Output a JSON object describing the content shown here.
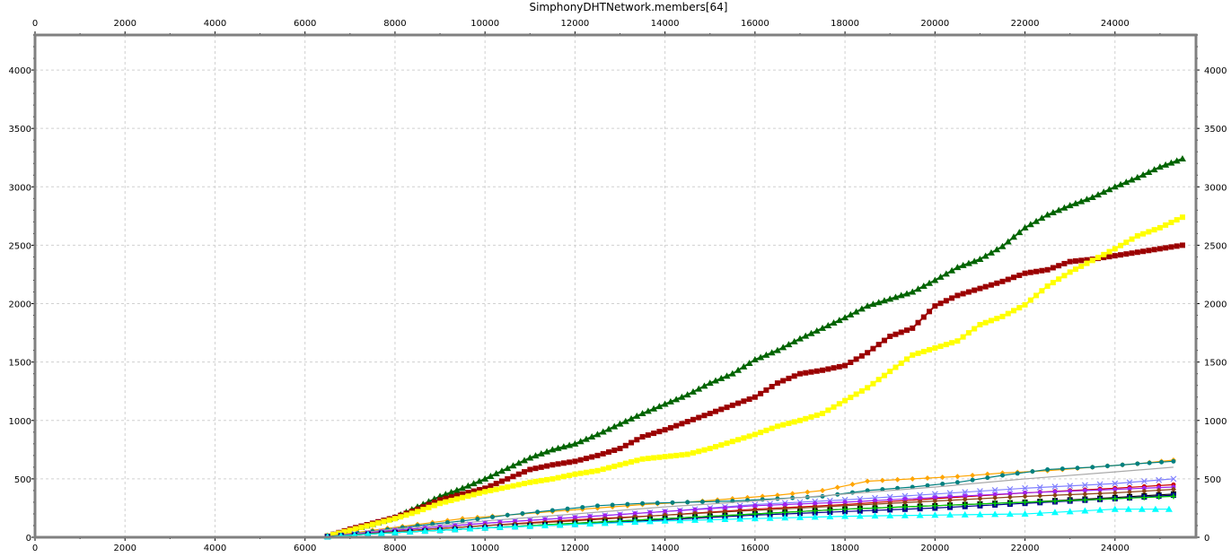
{
  "chart_data": {
    "type": "line",
    "title": "SimphonyDHTNetwork.members[64]",
    "xlim": [
      0,
      25800
    ],
    "ylim": [
      0,
      4300
    ],
    "x_ticks": [
      0,
      2000,
      4000,
      6000,
      8000,
      10000,
      12000,
      14000,
      16000,
      18000,
      20000,
      22000,
      24000
    ],
    "x_tick_labels": [
      "0",
      "2000",
      "4000",
      "6000",
      "8000",
      "10000",
      "12000",
      "14000",
      "16000",
      "18000",
      "20000",
      "22000",
      "24000"
    ],
    "y_ticks": [
      0,
      500,
      1000,
      1500,
      2000,
      2500,
      3000,
      3500,
      4000
    ],
    "y_tick_labels": [
      "0",
      "500",
      "1000",
      "1500",
      "2000",
      "2500",
      "3000",
      "3500",
      "4000"
    ],
    "grid": true,
    "series": [
      {
        "color": "#006400",
        "marker": "triangle",
        "x": [
          6500,
          7000,
          7500,
          8000,
          8500,
          9000,
          9500,
          10000,
          10500,
          11000,
          11500,
          12000,
          12500,
          13000,
          13500,
          14000,
          14500,
          15000,
          15500,
          16000,
          16500,
          17000,
          17500,
          18000,
          18500,
          19000,
          19500,
          20000,
          20500,
          21000,
          21500,
          22000,
          22500,
          23000,
          23500,
          24000,
          24500,
          25000,
          25500
        ],
        "values": [
          10,
          60,
          110,
          170,
          260,
          350,
          420,
          500,
          590,
          680,
          750,
          800,
          880,
          970,
          1060,
          1140,
          1220,
          1320,
          1400,
          1520,
          1600,
          1700,
          1790,
          1880,
          1980,
          2040,
          2100,
          2200,
          2310,
          2380,
          2490,
          2650,
          2760,
          2840,
          2910,
          3000,
          3080,
          3170,
          3240
        ]
      },
      {
        "color": "#9b0000",
        "marker": "square",
        "x": [
          6500,
          7000,
          7500,
          8000,
          8500,
          9000,
          9500,
          10000,
          10500,
          11000,
          11500,
          12000,
          12500,
          13000,
          13500,
          14000,
          14500,
          15000,
          15500,
          16000,
          16500,
          17000,
          17500,
          18000,
          18500,
          19000,
          19500,
          20000,
          20500,
          21000,
          21500,
          22000,
          22500,
          23000,
          23500,
          24000,
          24500,
          25000,
          25500
        ],
        "values": [
          10,
          70,
          120,
          170,
          240,
          320,
          370,
          420,
          500,
          580,
          620,
          650,
          700,
          760,
          860,
          920,
          990,
          1060,
          1130,
          1200,
          1320,
          1400,
          1430,
          1470,
          1580,
          1720,
          1790,
          1980,
          2070,
          2130,
          2190,
          2260,
          2290,
          2360,
          2380,
          2410,
          2440,
          2470,
          2500
        ]
      },
      {
        "color": "#ffff00",
        "marker": "square",
        "x": [
          6500,
          7000,
          7500,
          8000,
          8500,
          9000,
          9500,
          10000,
          10500,
          11000,
          11500,
          12000,
          12500,
          13000,
          13500,
          14000,
          14500,
          15000,
          15500,
          16000,
          16500,
          17000,
          17500,
          18000,
          18500,
          19000,
          19500,
          20000,
          20500,
          21000,
          21500,
          22000,
          22500,
          23000,
          23500,
          24000,
          24500,
          25000,
          25500
        ],
        "values": [
          10,
          60,
          110,
          160,
          220,
          290,
          340,
          390,
          430,
          470,
          500,
          540,
          570,
          620,
          670,
          690,
          710,
          760,
          820,
          880,
          950,
          1000,
          1060,
          1170,
          1280,
          1420,
          1560,
          1620,
          1680,
          1820,
          1890,
          1990,
          2150,
          2270,
          2370,
          2470,
          2580,
          2650,
          2740
        ]
      },
      {
        "color": "#ffa500",
        "marker": "diamond",
        "x": [
          6500,
          7500,
          8500,
          9500,
          10500,
          11500,
          12500,
          13500,
          14500,
          15500,
          16500,
          17500,
          18500,
          19500,
          20500,
          21500,
          22500,
          23500,
          24500,
          25300
        ],
        "values": [
          5,
          60,
          110,
          160,
          190,
          220,
          250,
          280,
          300,
          330,
          360,
          400,
          480,
          500,
          520,
          550,
          570,
          600,
          630,
          660
        ]
      },
      {
        "color": "#008080",
        "marker": "circle",
        "x": [
          6500,
          7500,
          8500,
          9500,
          10500,
          11500,
          12500,
          13500,
          14500,
          15500,
          16500,
          17500,
          18500,
          19500,
          20500,
          21500,
          22500,
          23500,
          24500,
          25300
        ],
        "values": [
          5,
          50,
          100,
          140,
          190,
          230,
          270,
          290,
          300,
          310,
          330,
          350,
          400,
          430,
          470,
          530,
          580,
          600,
          630,
          650
        ]
      },
      {
        "color": "#a9a9a9",
        "marker": "none",
        "x": [
          6500,
          8000,
          10000,
          12000,
          14000,
          16000,
          18000,
          20000,
          22000,
          24000,
          25300
        ],
        "values": [
          5,
          70,
          140,
          200,
          260,
          310,
          370,
          430,
          500,
          560,
          600
        ]
      },
      {
        "color": "#8080ff",
        "marker": "cross",
        "x": [
          6500,
          8000,
          10000,
          12000,
          14000,
          16000,
          18000,
          20000,
          22000,
          24000,
          25300
        ],
        "values": [
          5,
          60,
          120,
          170,
          220,
          280,
          320,
          370,
          420,
          460,
          500
        ]
      },
      {
        "color": "#cc0000",
        "marker": "circle",
        "x": [
          6500,
          8000,
          10000,
          12000,
          14000,
          16000,
          18000,
          20000,
          22000,
          24000,
          25300
        ],
        "values": [
          5,
          50,
          100,
          150,
          190,
          240,
          280,
          330,
          380,
          420,
          450
        ]
      },
      {
        "color": "#a020f0",
        "marker": "circle",
        "x": [
          6500,
          8000,
          10000,
          12000,
          14000,
          16000,
          18000,
          20000,
          22000,
          24000,
          25300
        ],
        "values": [
          5,
          60,
          120,
          170,
          220,
          270,
          300,
          340,
          380,
          410,
          430
        ]
      },
      {
        "color": "#8b4513",
        "marker": "diamond",
        "x": [
          6500,
          8000,
          10000,
          12000,
          14000,
          16000,
          18000,
          20000,
          22000,
          24000,
          25300
        ],
        "values": [
          5,
          50,
          100,
          140,
          190,
          230,
          270,
          310,
          350,
          380,
          410
        ]
      },
      {
        "color": "#000000",
        "marker": "square",
        "x": [
          6500,
          8000,
          10000,
          12000,
          14000,
          16000,
          18000,
          20000,
          22000,
          24000,
          25300
        ],
        "values": [
          5,
          40,
          80,
          120,
          160,
          200,
          240,
          270,
          300,
          340,
          370
        ]
      },
      {
        "color": "#00008b",
        "marker": "square",
        "x": [
          6500,
          8000,
          10000,
          12000,
          14000,
          16000,
          18000,
          20000,
          22000,
          24000,
          25300
        ],
        "values": [
          5,
          40,
          80,
          110,
          150,
          190,
          220,
          250,
          290,
          330,
          360
        ]
      },
      {
        "color": "#00cc00",
        "marker": "star",
        "x": [
          6500,
          8000,
          10000,
          12000,
          14000,
          16000,
          18000,
          20000,
          22000,
          24000,
          25300
        ],
        "values": [
          5,
          40,
          80,
          120,
          160,
          200,
          240,
          270,
          300,
          330,
          350
        ]
      },
      {
        "color": "#00ffff",
        "marker": "triangle",
        "x": [
          6500,
          8000,
          10000,
          12000,
          14000,
          16000,
          17000,
          18000,
          19000,
          20000,
          21000,
          22000,
          23000,
          24000,
          25200
        ],
        "values": [
          5,
          40,
          80,
          110,
          140,
          160,
          170,
          180,
          185,
          190,
          195,
          200,
          220,
          240,
          240
        ]
      }
    ]
  }
}
